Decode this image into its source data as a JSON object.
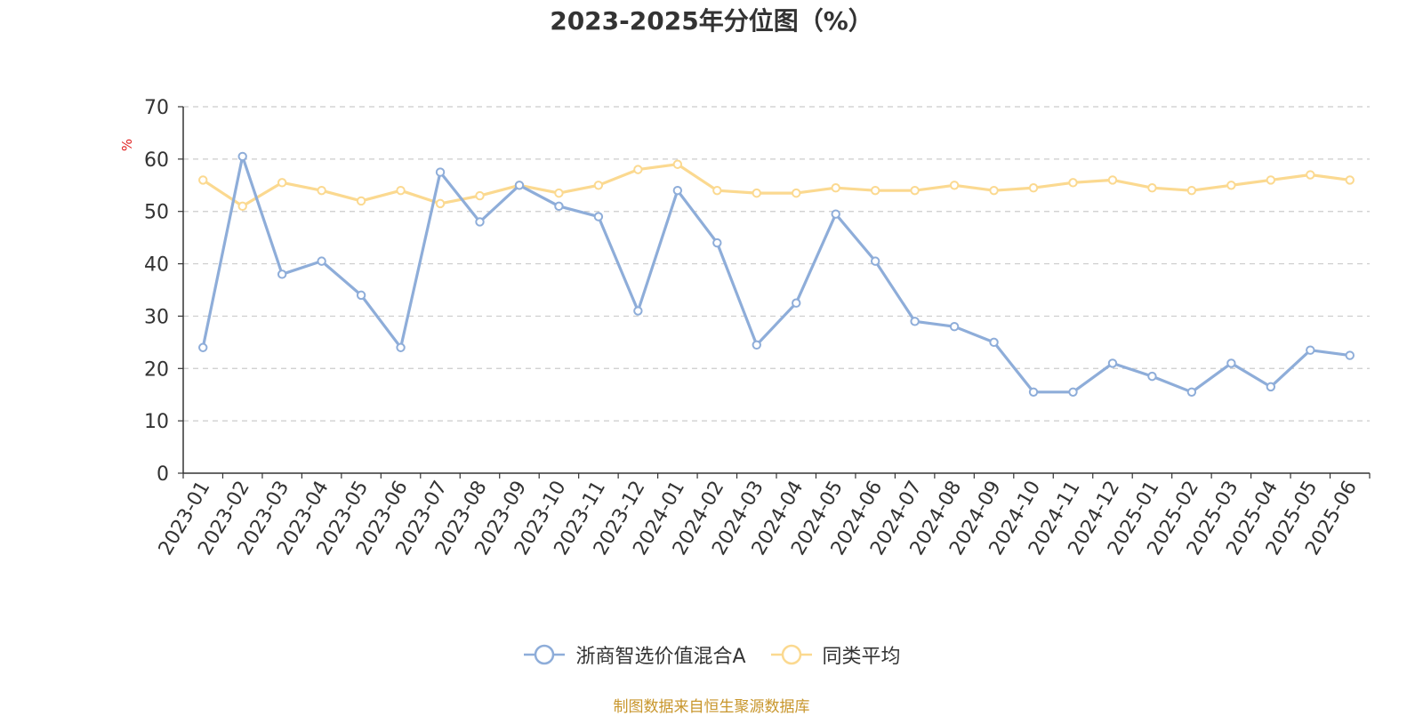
{
  "chart_data": {
    "type": "line",
    "title": "2023-2025年分位图（%）",
    "ylabel": "%",
    "ylim": [
      0,
      70
    ],
    "yticks": [
      0,
      10,
      20,
      30,
      40,
      50,
      60,
      70
    ],
    "grid": true,
    "legend_position": "bottom",
    "categories": [
      "2023-01",
      "2023-02",
      "2023-03",
      "2023-04",
      "2023-05",
      "2023-06",
      "2023-07",
      "2023-08",
      "2023-09",
      "2023-10",
      "2023-11",
      "2023-12",
      "2024-01",
      "2024-02",
      "2024-03",
      "2024-04",
      "2024-05",
      "2024-06",
      "2024-07",
      "2024-08",
      "2024-09",
      "2024-10",
      "2024-11",
      "2024-12",
      "2025-01",
      "2025-02",
      "2025-03",
      "2025-04",
      "2025-05",
      "2025-06"
    ],
    "series": [
      {
        "name": "浙商智选价值混合A",
        "color": "#8eadd9",
        "values": [
          24,
          60.5,
          38,
          40.5,
          34,
          24,
          57.5,
          48,
          55,
          51,
          49,
          31,
          54,
          44,
          24.5,
          32.5,
          49.5,
          40.5,
          29,
          28,
          25,
          15.5,
          15.5,
          21,
          18.5,
          15.5,
          21,
          16.5,
          23.5,
          22.5
        ]
      },
      {
        "name": "同类平均",
        "color": "#fbd990",
        "values": [
          56,
          51,
          55.5,
          54,
          52,
          54,
          51.5,
          53,
          55,
          53.5,
          55,
          58,
          59,
          54,
          53.5,
          53.5,
          54.5,
          54,
          54,
          55,
          54,
          54.5,
          55.5,
          56,
          54.5,
          54,
          55,
          56,
          57,
          56
        ]
      }
    ]
  },
  "source_note": "制图数据来自恒生聚源数据库"
}
